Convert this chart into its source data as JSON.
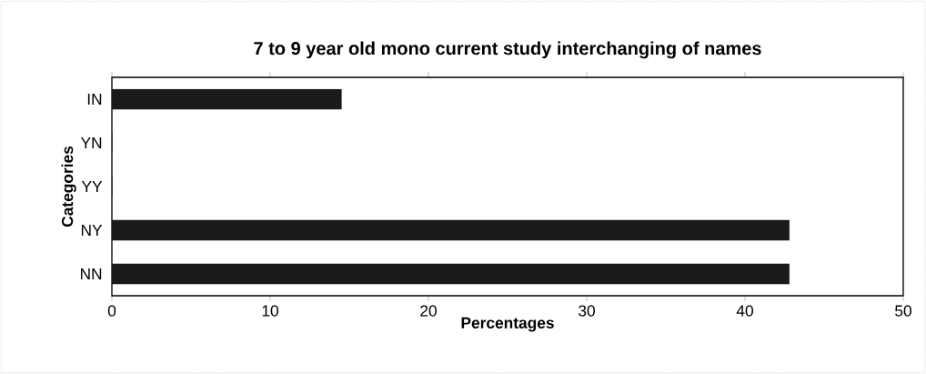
{
  "chart_data": {
    "type": "bar",
    "orientation": "horizontal",
    "title": "7 to 9 year old mono current study interchanging of names",
    "xlabel": "Percentages",
    "ylabel": "Categories",
    "categories": [
      "IN",
      "YN",
      "YY",
      "NY",
      "NN"
    ],
    "values": [
      14.5,
      0,
      0,
      42.8,
      42.8
    ],
    "color": "#1a1a1a",
    "xlim": [
      0,
      50
    ],
    "xticks": [
      0,
      10,
      20,
      30,
      40,
      50
    ]
  }
}
